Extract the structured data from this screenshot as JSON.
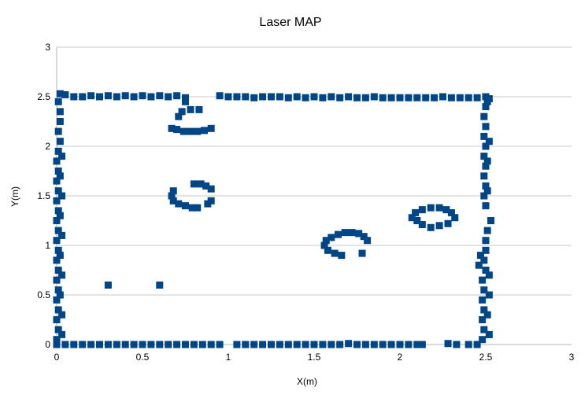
{
  "chart_data": {
    "type": "scatter",
    "title": "Laser MAP",
    "xlabel": "X(m)",
    "ylabel": "Y(m)",
    "xlim": [
      0,
      3
    ],
    "ylim": [
      0,
      3
    ],
    "x_ticks": [
      "0",
      "0.5",
      "1",
      "1.5",
      "2",
      "2.5",
      "3"
    ],
    "y_ticks": [
      "0",
      "0.5",
      "1",
      "1.5",
      "2",
      "2.5",
      "3"
    ],
    "grid": "horizontal",
    "legend": "none",
    "marker": "square",
    "color": "#004586",
    "series": [
      {
        "values": [
          {
            "x": 0.02,
            "y": 2.53
          },
          {
            "x": 0.05,
            "y": 2.52
          },
          {
            "x": 0.1,
            "y": 2.5
          },
          {
            "x": 0.15,
            "y": 2.5
          },
          {
            "x": 0.2,
            "y": 2.51
          },
          {
            "x": 0.25,
            "y": 2.5
          },
          {
            "x": 0.3,
            "y": 2.51
          },
          {
            "x": 0.35,
            "y": 2.5
          },
          {
            "x": 0.4,
            "y": 2.51
          },
          {
            "x": 0.45,
            "y": 2.5
          },
          {
            "x": 0.5,
            "y": 2.51
          },
          {
            "x": 0.55,
            "y": 2.5
          },
          {
            "x": 0.6,
            "y": 2.51
          },
          {
            "x": 0.65,
            "y": 2.5
          },
          {
            "x": 0.7,
            "y": 2.51
          },
          {
            "x": 0.75,
            "y": 2.49
          },
          {
            "x": 0.95,
            "y": 2.51
          },
          {
            "x": 1.0,
            "y": 2.5
          },
          {
            "x": 1.05,
            "y": 2.5
          },
          {
            "x": 1.1,
            "y": 2.5
          },
          {
            "x": 1.15,
            "y": 2.49
          },
          {
            "x": 1.2,
            "y": 2.5
          },
          {
            "x": 1.25,
            "y": 2.5
          },
          {
            "x": 1.3,
            "y": 2.5
          },
          {
            "x": 1.35,
            "y": 2.49
          },
          {
            "x": 1.4,
            "y": 2.5
          },
          {
            "x": 1.45,
            "y": 2.49
          },
          {
            "x": 1.5,
            "y": 2.5
          },
          {
            "x": 1.55,
            "y": 2.49
          },
          {
            "x": 1.6,
            "y": 2.5
          },
          {
            "x": 1.65,
            "y": 2.49
          },
          {
            "x": 1.7,
            "y": 2.5
          },
          {
            "x": 1.75,
            "y": 2.49
          },
          {
            "x": 1.8,
            "y": 2.49
          },
          {
            "x": 1.85,
            "y": 2.5
          },
          {
            "x": 1.9,
            "y": 2.49
          },
          {
            "x": 1.95,
            "y": 2.49
          },
          {
            "x": 2.0,
            "y": 2.49
          },
          {
            "x": 2.05,
            "y": 2.49
          },
          {
            "x": 2.1,
            "y": 2.49
          },
          {
            "x": 2.15,
            "y": 2.49
          },
          {
            "x": 2.2,
            "y": 2.49
          },
          {
            "x": 2.25,
            "y": 2.5
          },
          {
            "x": 2.3,
            "y": 2.49
          },
          {
            "x": 2.35,
            "y": 2.49
          },
          {
            "x": 2.4,
            "y": 2.49
          },
          {
            "x": 2.45,
            "y": 2.49
          },
          {
            "x": 2.5,
            "y": 2.5
          },
          {
            "x": 2.52,
            "y": 2.48
          },
          {
            "x": 0.0,
            "y": 0.0
          },
          {
            "x": 0.05,
            "y": 0.0
          },
          {
            "x": 0.1,
            "y": 0.0
          },
          {
            "x": 0.15,
            "y": 0.0
          },
          {
            "x": 0.2,
            "y": 0.0
          },
          {
            "x": 0.25,
            "y": 0.0
          },
          {
            "x": 0.3,
            "y": 0.0
          },
          {
            "x": 0.35,
            "y": 0.0
          },
          {
            "x": 0.4,
            "y": 0.0
          },
          {
            "x": 0.45,
            "y": 0.0
          },
          {
            "x": 0.5,
            "y": 0.0
          },
          {
            "x": 0.55,
            "y": 0.0
          },
          {
            "x": 0.6,
            "y": 0.0
          },
          {
            "x": 0.65,
            "y": 0.0
          },
          {
            "x": 0.7,
            "y": 0.0
          },
          {
            "x": 0.75,
            "y": 0.0
          },
          {
            "x": 0.8,
            "y": 0.0
          },
          {
            "x": 0.85,
            "y": 0.0
          },
          {
            "x": 0.9,
            "y": 0.0
          },
          {
            "x": 0.95,
            "y": 0.0
          },
          {
            "x": 1.05,
            "y": 0.0
          },
          {
            "x": 1.1,
            "y": 0.0
          },
          {
            "x": 1.15,
            "y": 0.0
          },
          {
            "x": 1.2,
            "y": 0.0
          },
          {
            "x": 1.25,
            "y": 0.0
          },
          {
            "x": 1.3,
            "y": 0.0
          },
          {
            "x": 1.35,
            "y": 0.0
          },
          {
            "x": 1.4,
            "y": 0.0
          },
          {
            "x": 1.45,
            "y": 0.0
          },
          {
            "x": 1.5,
            "y": 0.0
          },
          {
            "x": 1.55,
            "y": 0.0
          },
          {
            "x": 1.6,
            "y": 0.0
          },
          {
            "x": 1.65,
            "y": 0.0
          },
          {
            "x": 1.7,
            "y": 0.01
          },
          {
            "x": 1.75,
            "y": 0.0
          },
          {
            "x": 1.8,
            "y": 0.0
          },
          {
            "x": 1.85,
            "y": 0.0
          },
          {
            "x": 1.9,
            "y": 0.0
          },
          {
            "x": 1.95,
            "y": 0.0
          },
          {
            "x": 2.0,
            "y": 0.0
          },
          {
            "x": 2.05,
            "y": 0.0
          },
          {
            "x": 2.1,
            "y": 0.0
          },
          {
            "x": 2.13,
            "y": 0.0
          },
          {
            "x": 2.28,
            "y": 0.01
          },
          {
            "x": 2.33,
            "y": 0.0
          },
          {
            "x": 2.4,
            "y": 0.0
          },
          {
            "x": 2.45,
            "y": 0.0
          },
          {
            "x": 0.0,
            "y": 0.05
          },
          {
            "x": 0.01,
            "y": 0.15
          },
          {
            "x": 0.0,
            "y": 0.25
          },
          {
            "x": 0.01,
            "y": 0.35
          },
          {
            "x": 0.0,
            "y": 0.45
          },
          {
            "x": 0.01,
            "y": 0.55
          },
          {
            "x": 0.0,
            "y": 0.65
          },
          {
            "x": 0.01,
            "y": 0.75
          },
          {
            "x": 0.0,
            "y": 0.85
          },
          {
            "x": 0.01,
            "y": 0.95
          },
          {
            "x": 0.0,
            "y": 1.05
          },
          {
            "x": 0.01,
            "y": 1.15
          },
          {
            "x": 0.0,
            "y": 1.25
          },
          {
            "x": 0.01,
            "y": 1.35
          },
          {
            "x": 0.0,
            "y": 1.45
          },
          {
            "x": 0.01,
            "y": 1.55
          },
          {
            "x": 0.0,
            "y": 1.65
          },
          {
            "x": 0.01,
            "y": 1.75
          },
          {
            "x": 0.0,
            "y": 1.85
          },
          {
            "x": 0.01,
            "y": 1.95
          },
          {
            "x": 0.02,
            "y": 2.05
          },
          {
            "x": 0.01,
            "y": 2.15
          },
          {
            "x": 0.02,
            "y": 2.25
          },
          {
            "x": 0.02,
            "y": 2.35
          },
          {
            "x": 0.01,
            "y": 2.45
          },
          {
            "x": 0.03,
            "y": 0.1
          },
          {
            "x": 0.03,
            "y": 0.3
          },
          {
            "x": 0.02,
            "y": 0.5
          },
          {
            "x": 0.03,
            "y": 0.7
          },
          {
            "x": 0.02,
            "y": 0.9
          },
          {
            "x": 0.03,
            "y": 1.1
          },
          {
            "x": 0.02,
            "y": 1.3
          },
          {
            "x": 0.03,
            "y": 1.5
          },
          {
            "x": 0.02,
            "y": 1.7
          },
          {
            "x": 0.03,
            "y": 1.9
          },
          {
            "x": 2.48,
            "y": 0.05
          },
          {
            "x": 2.49,
            "y": 0.15
          },
          {
            "x": 2.48,
            "y": 0.25
          },
          {
            "x": 2.49,
            "y": 0.35
          },
          {
            "x": 2.48,
            "y": 0.45
          },
          {
            "x": 2.49,
            "y": 0.55
          },
          {
            "x": 2.48,
            "y": 0.65
          },
          {
            "x": 2.5,
            "y": 0.75
          },
          {
            "x": 2.49,
            "y": 0.85
          },
          {
            "x": 2.5,
            "y": 0.95
          },
          {
            "x": 2.5,
            "y": 1.05
          },
          {
            "x": 2.51,
            "y": 1.15
          },
          {
            "x": 2.53,
            "y": 1.25
          },
          {
            "x": 2.5,
            "y": 1.4
          },
          {
            "x": 2.49,
            "y": 1.5
          },
          {
            "x": 2.5,
            "y": 1.6
          },
          {
            "x": 2.49,
            "y": 1.7
          },
          {
            "x": 2.5,
            "y": 1.8
          },
          {
            "x": 2.49,
            "y": 1.9
          },
          {
            "x": 2.5,
            "y": 2.0
          },
          {
            "x": 2.49,
            "y": 2.1
          },
          {
            "x": 2.5,
            "y": 2.2
          },
          {
            "x": 2.49,
            "y": 2.3
          },
          {
            "x": 2.5,
            "y": 2.4
          },
          {
            "x": 2.51,
            "y": 2.45
          },
          {
            "x": 2.46,
            "y": 0.8
          },
          {
            "x": 2.47,
            "y": 0.9
          },
          {
            "x": 2.52,
            "y": 0.7
          },
          {
            "x": 2.52,
            "y": 0.5
          },
          {
            "x": 2.51,
            "y": 0.3
          },
          {
            "x": 2.52,
            "y": 0.1
          },
          {
            "x": 2.51,
            "y": 1.55
          },
          {
            "x": 2.52,
            "y": 2.05
          },
          {
            "x": 2.51,
            "y": 1.85
          },
          {
            "x": 0.67,
            "y": 2.18
          },
          {
            "x": 0.7,
            "y": 2.17
          },
          {
            "x": 0.74,
            "y": 2.15
          },
          {
            "x": 0.78,
            "y": 2.15
          },
          {
            "x": 0.82,
            "y": 2.15
          },
          {
            "x": 0.86,
            "y": 2.16
          },
          {
            "x": 0.9,
            "y": 2.18
          },
          {
            "x": 0.71,
            "y": 2.3
          },
          {
            "x": 0.73,
            "y": 2.35
          },
          {
            "x": 0.78,
            "y": 2.37
          },
          {
            "x": 0.83,
            "y": 2.37
          },
          {
            "x": 0.75,
            "y": 2.45
          },
          {
            "x": 0.68,
            "y": 1.55
          },
          {
            "x": 0.67,
            "y": 1.5
          },
          {
            "x": 0.68,
            "y": 1.45
          },
          {
            "x": 0.71,
            "y": 1.42
          },
          {
            "x": 0.75,
            "y": 1.4
          },
          {
            "x": 0.79,
            "y": 1.38
          },
          {
            "x": 0.82,
            "y": 1.38
          },
          {
            "x": 0.88,
            "y": 1.42
          },
          {
            "x": 0.9,
            "y": 1.45
          },
          {
            "x": 0.8,
            "y": 1.62
          },
          {
            "x": 0.84,
            "y": 1.62
          },
          {
            "x": 0.87,
            "y": 1.6
          },
          {
            "x": 0.9,
            "y": 1.57
          },
          {
            "x": 1.57,
            "y": 1.05
          },
          {
            "x": 1.56,
            "y": 1.0
          },
          {
            "x": 1.58,
            "y": 0.95
          },
          {
            "x": 1.62,
            "y": 0.92
          },
          {
            "x": 1.66,
            "y": 0.9
          },
          {
            "x": 1.6,
            "y": 1.08
          },
          {
            "x": 1.64,
            "y": 1.11
          },
          {
            "x": 1.68,
            "y": 1.13
          },
          {
            "x": 1.72,
            "y": 1.13
          },
          {
            "x": 1.76,
            "y": 1.12
          },
          {
            "x": 1.79,
            "y": 1.09
          },
          {
            "x": 1.81,
            "y": 1.05
          },
          {
            "x": 1.78,
            "y": 0.92
          },
          {
            "x": 2.07,
            "y": 1.28
          },
          {
            "x": 2.09,
            "y": 1.33
          },
          {
            "x": 2.13,
            "y": 1.36
          },
          {
            "x": 2.18,
            "y": 1.38
          },
          {
            "x": 2.23,
            "y": 1.38
          },
          {
            "x": 2.27,
            "y": 1.36
          },
          {
            "x": 2.3,
            "y": 1.33
          },
          {
            "x": 2.32,
            "y": 1.28
          },
          {
            "x": 2.28,
            "y": 1.22
          },
          {
            "x": 2.23,
            "y": 1.2
          },
          {
            "x": 2.18,
            "y": 1.18
          },
          {
            "x": 2.13,
            "y": 1.21
          },
          {
            "x": 2.1,
            "y": 1.25
          },
          {
            "x": 0.3,
            "y": 0.6
          },
          {
            "x": 0.6,
            "y": 0.6
          }
        ]
      }
    ]
  }
}
